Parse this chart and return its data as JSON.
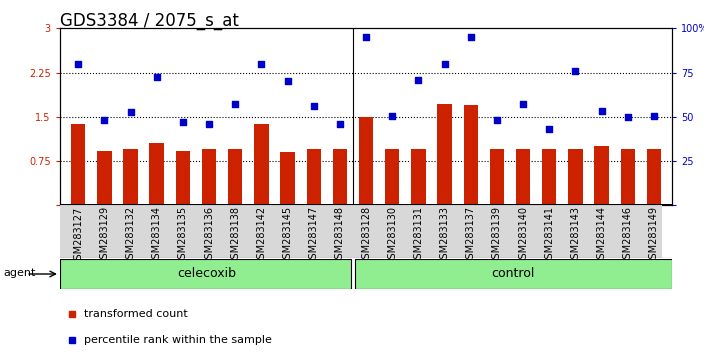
{
  "title": "GDS3384 / 2075_s_at",
  "samples": [
    "GSM283127",
    "GSM283129",
    "GSM283132",
    "GSM283134",
    "GSM283135",
    "GSM283136",
    "GSM283138",
    "GSM283142",
    "GSM283145",
    "GSM283147",
    "GSM283148",
    "GSM283128",
    "GSM283130",
    "GSM283131",
    "GSM283133",
    "GSM283137",
    "GSM283139",
    "GSM283140",
    "GSM283141",
    "GSM283143",
    "GSM283144",
    "GSM283146",
    "GSM283149"
  ],
  "bar_values": [
    1.38,
    0.92,
    0.95,
    1.05,
    0.92,
    0.95,
    0.95,
    1.38,
    0.9,
    0.95,
    0.95,
    1.5,
    0.95,
    0.95,
    1.72,
    1.7,
    0.95,
    0.95,
    0.95,
    0.95,
    1.0,
    0.95,
    0.95
  ],
  "dot_values": [
    2.4,
    1.44,
    1.58,
    2.18,
    1.42,
    1.38,
    1.72,
    2.4,
    2.1,
    1.68,
    1.38,
    2.85,
    1.52,
    2.12,
    2.4,
    2.85,
    1.44,
    1.72,
    1.3,
    2.28,
    1.6,
    1.5,
    1.52
  ],
  "celecoxib_count": 11,
  "control_count": 12,
  "bar_color": "#cc2200",
  "dot_color": "#0000cc",
  "plot_bg": "#ffffff",
  "ylim_left": [
    0,
    3
  ],
  "ylim_right": [
    0,
    100
  ],
  "yticks_left": [
    0,
    0.75,
    1.5,
    2.25,
    3
  ],
  "yticks_right": [
    0,
    25,
    50,
    75,
    100
  ],
  "legend_bar": "transformed count",
  "legend_dot": "percentile rank within the sample",
  "agent_label": "agent",
  "celecoxib_label": "celecoxib",
  "control_label": "control",
  "hlines": [
    0.75,
    1.5,
    2.25
  ],
  "title_fontsize": 12,
  "tick_fontsize": 7,
  "bar_width": 0.55,
  "xlabel_rotation": 90
}
